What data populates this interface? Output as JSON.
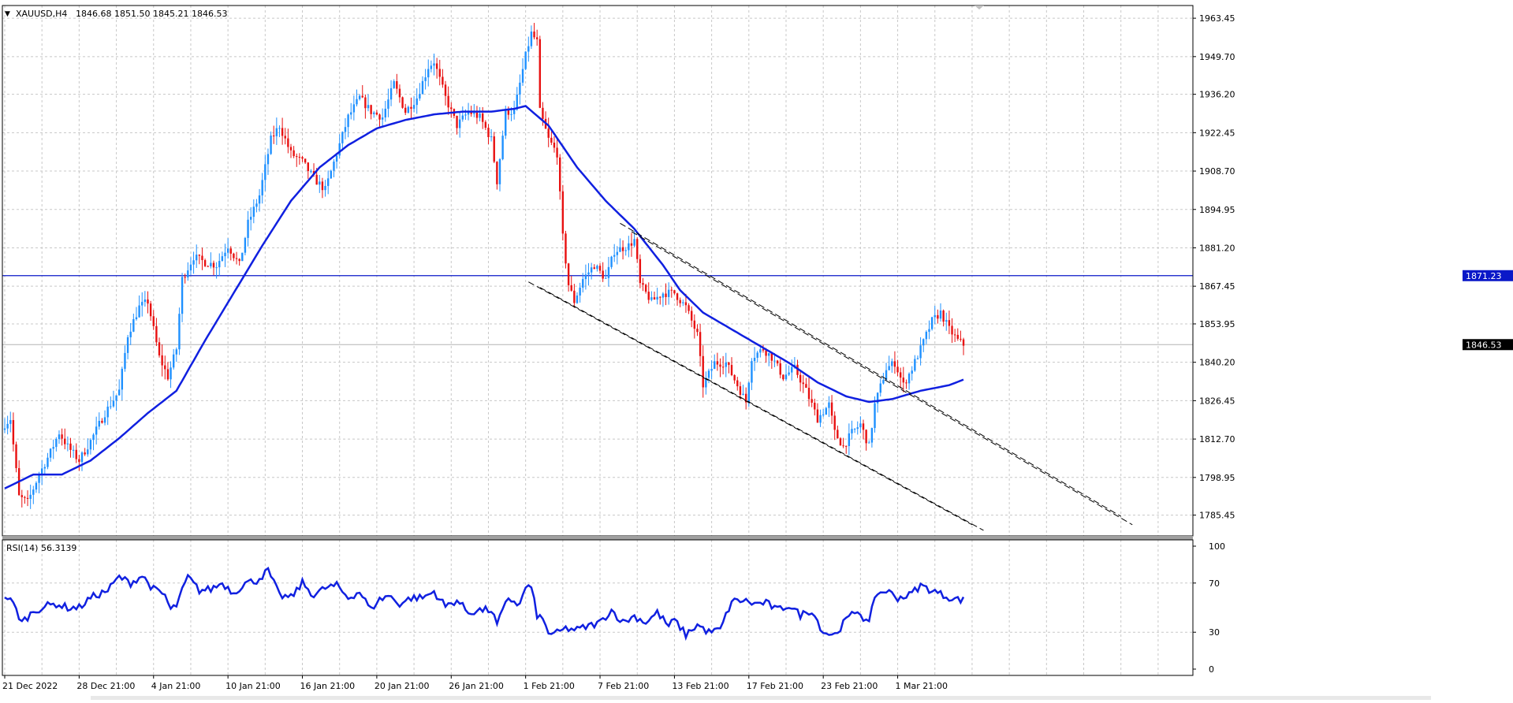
{
  "header": {
    "symbol": "XAUUSD,H4",
    "ohlc": "1846.68 1851.50 1845.21 1846.53",
    "menu_glyph": "▼"
  },
  "rsi_label": "RSI(14) 56.3139",
  "colors": {
    "bull": "#1e90ff",
    "bear": "#e81010",
    "ma": "#1020e0",
    "hline": "#0a18c8",
    "price_badge": "#000000",
    "hline_badge": "#0a18c8"
  },
  "chart_data": [
    {
      "type": "candlestick",
      "symbol": "XAUUSD",
      "timeframe": "H4",
      "ylim": [
        1778,
        1968
      ],
      "y_ticks": [
        "1963.45",
        "1949.70",
        "1936.20",
        "1922.45",
        "1908.70",
        "1894.95",
        "1881.20",
        "1867.45",
        "1853.95",
        "1840.20",
        "1826.45",
        "1812.70",
        "1798.95",
        "1785.45"
      ],
      "x_ticks": [
        "21 Dec 2022",
        "28 Dec 21:00",
        "4 Jan 21:00",
        "10 Jan 21:00",
        "16 Jan 21:00",
        "20 Jan 21:00",
        "26 Jan 21:00",
        "1 Feb 21:00",
        "7 Feb 21:00",
        "13 Feb 21:00",
        "17 Feb 21:00",
        "23 Feb 21:00",
        "1 Mar 21:00"
      ],
      "x_tick_bar": [
        0,
        26,
        52,
        78,
        104,
        130,
        156,
        182,
        208,
        234,
        260,
        286,
        312
      ],
      "current_price": "1846.53",
      "current_price_value": 1846.53,
      "horizontal_line": "1871.23",
      "horizontal_line_value": 1871.23,
      "bar_count": 336,
      "close_anchors": [
        [
          0,
          1818
        ],
        [
          2,
          1820
        ],
        [
          5,
          1792
        ],
        [
          8,
          1790
        ],
        [
          12,
          1800
        ],
        [
          16,
          1808
        ],
        [
          19,
          1815
        ],
        [
          22,
          1810
        ],
        [
          26,
          1805
        ],
        [
          30,
          1812
        ],
        [
          35,
          1822
        ],
        [
          40,
          1830
        ],
        [
          43,
          1850
        ],
        [
          47,
          1860
        ],
        [
          50,
          1862
        ],
        [
          54,
          1842
        ],
        [
          57,
          1835
        ],
        [
          60,
          1845
        ],
        [
          62,
          1870
        ],
        [
          66,
          1878
        ],
        [
          70,
          1876
        ],
        [
          74,
          1875
        ],
        [
          78,
          1882
        ],
        [
          82,
          1875
        ],
        [
          85,
          1890
        ],
        [
          89,
          1900
        ],
        [
          93,
          1920
        ],
        [
          96,
          1925
        ],
        [
          100,
          1915
        ],
        [
          104,
          1912
        ],
        [
          108,
          1906
        ],
        [
          112,
          1902
        ],
        [
          116,
          1915
        ],
        [
          120,
          1928
        ],
        [
          124,
          1935
        ],
        [
          128,
          1930
        ],
        [
          132,
          1928
        ],
        [
          136,
          1940
        ],
        [
          140,
          1930
        ],
        [
          144,
          1935
        ],
        [
          148,
          1946
        ],
        [
          150,
          1948
        ],
        [
          154,
          1935
        ],
        [
          158,
          1925
        ],
        [
          162,
          1930
        ],
        [
          166,
          1928
        ],
        [
          170,
          1920
        ],
        [
          172,
          1905
        ],
        [
          175,
          1930
        ],
        [
          178,
          1930
        ],
        [
          182,
          1950
        ],
        [
          184,
          1958
        ],
        [
          186,
          1955
        ],
        [
          187,
          1930
        ],
        [
          190,
          1920
        ],
        [
          193,
          1915
        ],
        [
          195,
          1885
        ],
        [
          197,
          1868
        ],
        [
          199,
          1862
        ],
        [
          202,
          1870
        ],
        [
          206,
          1875
        ],
        [
          210,
          1870
        ],
        [
          213,
          1880
        ],
        [
          218,
          1882
        ],
        [
          220,
          1884
        ],
        [
          222,
          1868
        ],
        [
          226,
          1862
        ],
        [
          230,
          1865
        ],
        [
          234,
          1865
        ],
        [
          238,
          1860
        ],
        [
          242,
          1850
        ],
        [
          244,
          1832
        ],
        [
          248,
          1840
        ],
        [
          252,
          1840
        ],
        [
          256,
          1832
        ],
        [
          259,
          1826
        ],
        [
          261,
          1842
        ],
        [
          265,
          1845
        ],
        [
          268,
          1842
        ],
        [
          272,
          1835
        ],
        [
          276,
          1838
        ],
        [
          280,
          1830
        ],
        [
          284,
          1820
        ],
        [
          288,
          1825
        ],
        [
          290,
          1815
        ],
        [
          293,
          1810
        ],
        [
          296,
          1815
        ],
        [
          299,
          1818
        ],
        [
          302,
          1810
        ],
        [
          304,
          1825
        ],
        [
          308,
          1838
        ],
        [
          311,
          1840
        ],
        [
          314,
          1832
        ],
        [
          317,
          1838
        ],
        [
          320,
          1845
        ],
        [
          324,
          1855
        ],
        [
          327,
          1858
        ],
        [
          330,
          1852
        ],
        [
          333,
          1848
        ],
        [
          335,
          1846.53
        ]
      ],
      "moving_average_anchors": [
        [
          0,
          1795
        ],
        [
          10,
          1800
        ],
        [
          20,
          1800
        ],
        [
          30,
          1805
        ],
        [
          40,
          1813
        ],
        [
          50,
          1822
        ],
        [
          60,
          1830
        ],
        [
          70,
          1848
        ],
        [
          80,
          1865
        ],
        [
          90,
          1882
        ],
        [
          100,
          1898
        ],
        [
          110,
          1910
        ],
        [
          120,
          1918
        ],
        [
          130,
          1924
        ],
        [
          140,
          1927
        ],
        [
          150,
          1929
        ],
        [
          160,
          1930
        ],
        [
          170,
          1930
        ],
        [
          178,
          1931
        ],
        [
          182,
          1932
        ],
        [
          190,
          1925
        ],
        [
          200,
          1910
        ],
        [
          210,
          1898
        ],
        [
          220,
          1888
        ],
        [
          230,
          1875
        ],
        [
          236,
          1866
        ],
        [
          244,
          1858
        ],
        [
          254,
          1852
        ],
        [
          264,
          1846
        ],
        [
          274,
          1840
        ],
        [
          284,
          1833
        ],
        [
          294,
          1828
        ],
        [
          302,
          1826
        ],
        [
          310,
          1827
        ],
        [
          320,
          1830
        ],
        [
          330,
          1832
        ],
        [
          335,
          1834
        ]
      ],
      "channel_lines": [
        [
          [
            215,
            1890
          ],
          [
            390,
            1785
          ]
        ],
        [
          [
            219,
            1887
          ],
          [
            394,
            1782
          ]
        ],
        [
          [
            183,
            1869
          ],
          [
            338,
            1782
          ]
        ],
        [
          [
            187,
            1867
          ],
          [
            342,
            1780
          ]
        ]
      ]
    },
    {
      "type": "line",
      "name": "RSI(14)",
      "ylim": [
        0,
        100
      ],
      "y_ticks": [
        "100",
        "70",
        "30",
        "0"
      ],
      "value": 56.3139,
      "anchors": [
        [
          0,
          60
        ],
        [
          3,
          53
        ],
        [
          6,
          38
        ],
        [
          10,
          47
        ],
        [
          14,
          51
        ],
        [
          18,
          53
        ],
        [
          22,
          50
        ],
        [
          26,
          50
        ],
        [
          30,
          58
        ],
        [
          36,
          64
        ],
        [
          40,
          75
        ],
        [
          44,
          70
        ],
        [
          48,
          76
        ],
        [
          52,
          65
        ],
        [
          56,
          60
        ],
        [
          58,
          48
        ],
        [
          60,
          52
        ],
        [
          64,
          75
        ],
        [
          68,
          64
        ],
        [
          72,
          65
        ],
        [
          76,
          70
        ],
        [
          80,
          62
        ],
        [
          84,
          70
        ],
        [
          88,
          72
        ],
        [
          92,
          80
        ],
        [
          96,
          60
        ],
        [
          100,
          58
        ],
        [
          104,
          70
        ],
        [
          108,
          60
        ],
        [
          112,
          66
        ],
        [
          116,
          68
        ],
        [
          120,
          58
        ],
        [
          124,
          63
        ],
        [
          128,
          48
        ],
        [
          130,
          55
        ],
        [
          134,
          60
        ],
        [
          138,
          53
        ],
        [
          142,
          58
        ],
        [
          146,
          58
        ],
        [
          150,
          63
        ],
        [
          154,
          51
        ],
        [
          158,
          56
        ],
        [
          162,
          46
        ],
        [
          166,
          48
        ],
        [
          170,
          48
        ],
        [
          172,
          36
        ],
        [
          176,
          58
        ],
        [
          180,
          52
        ],
        [
          182,
          67
        ],
        [
          184,
          66
        ],
        [
          186,
          44
        ],
        [
          188,
          40
        ],
        [
          190,
          30
        ],
        [
          192,
          28
        ],
        [
          196,
          33
        ],
        [
          200,
          32
        ],
        [
          204,
          35
        ],
        [
          208,
          38
        ],
        [
          212,
          48
        ],
        [
          216,
          38
        ],
        [
          220,
          43
        ],
        [
          224,
          38
        ],
        [
          228,
          46
        ],
        [
          232,
          35
        ],
        [
          234,
          40
        ],
        [
          238,
          28
        ],
        [
          242,
          36
        ],
        [
          246,
          30
        ],
        [
          250,
          32
        ],
        [
          254,
          55
        ],
        [
          258,
          56
        ],
        [
          262,
          53
        ],
        [
          266,
          54
        ],
        [
          270,
          48
        ],
        [
          274,
          52
        ],
        [
          278,
          44
        ],
        [
          282,
          48
        ],
        [
          286,
          30
        ],
        [
          290,
          28
        ],
        [
          294,
          40
        ],
        [
          298,
          48
        ],
        [
          302,
          36
        ],
        [
          304,
          60
        ],
        [
          308,
          64
        ],
        [
          312,
          58
        ],
        [
          316,
          60
        ],
        [
          320,
          68
        ],
        [
          324,
          64
        ],
        [
          328,
          60
        ],
        [
          332,
          57
        ],
        [
          335,
          56.3
        ]
      ]
    }
  ]
}
